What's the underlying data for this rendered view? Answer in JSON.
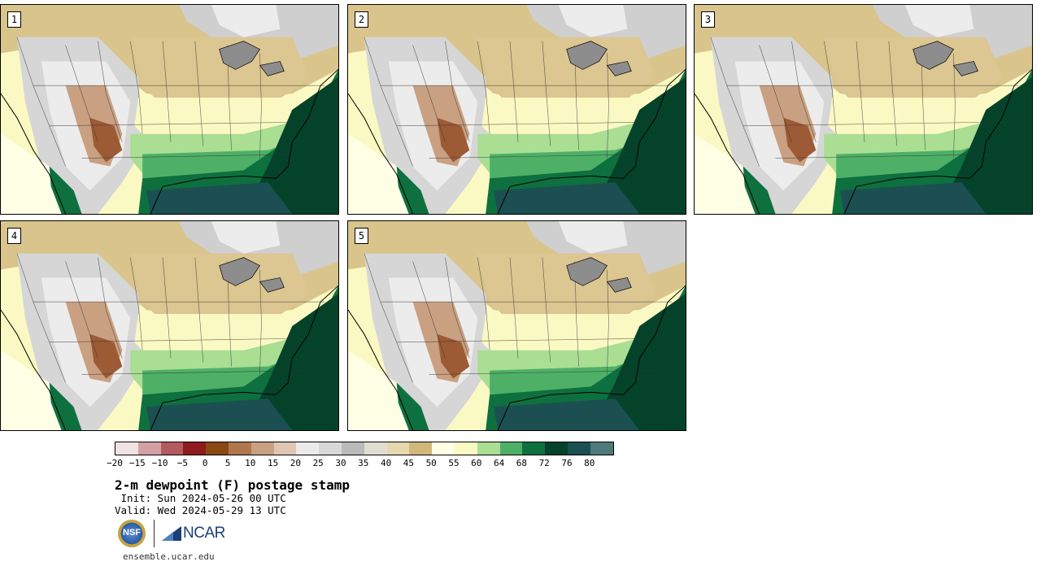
{
  "panels": [
    {
      "label": "1"
    },
    {
      "label": "2"
    },
    {
      "label": "3"
    },
    {
      "label": "4"
    },
    {
      "label": "5"
    }
  ],
  "colorbar": {
    "colors": [
      "#f2e3e3",
      "#d5a0a3",
      "#b45b60",
      "#8e1b1e",
      "#8a4812",
      "#b0774d",
      "#c9a081",
      "#e0c5b2",
      "#ebebeb",
      "#d8d8d8",
      "#bababa",
      "#e0ddd0",
      "#e5d7ae",
      "#d1b77a",
      "#ffffe6",
      "#fbf9c3",
      "#a9de93",
      "#4eb067",
      "#0d703e",
      "#04432a",
      "#1c4f52",
      "#4e7a7b"
    ],
    "ticks": [
      "−20",
      "−15",
      "−10",
      "−5",
      "0",
      "5",
      "10",
      "15",
      "20",
      "25",
      "30",
      "35",
      "40",
      "45",
      "50",
      "55",
      "60",
      "64",
      "68",
      "72",
      "76",
      "80"
    ]
  },
  "title": "2-m dewpoint (F) postage stamp",
  "init": " Init: Sun 2024-05-26 00 UTC",
  "valid": "Valid: Wed 2024-05-29 13 UTC",
  "logos": {
    "nsf": "NSF",
    "ncar": "NCAR"
  },
  "footer": "ensemble.ucar.edu"
}
